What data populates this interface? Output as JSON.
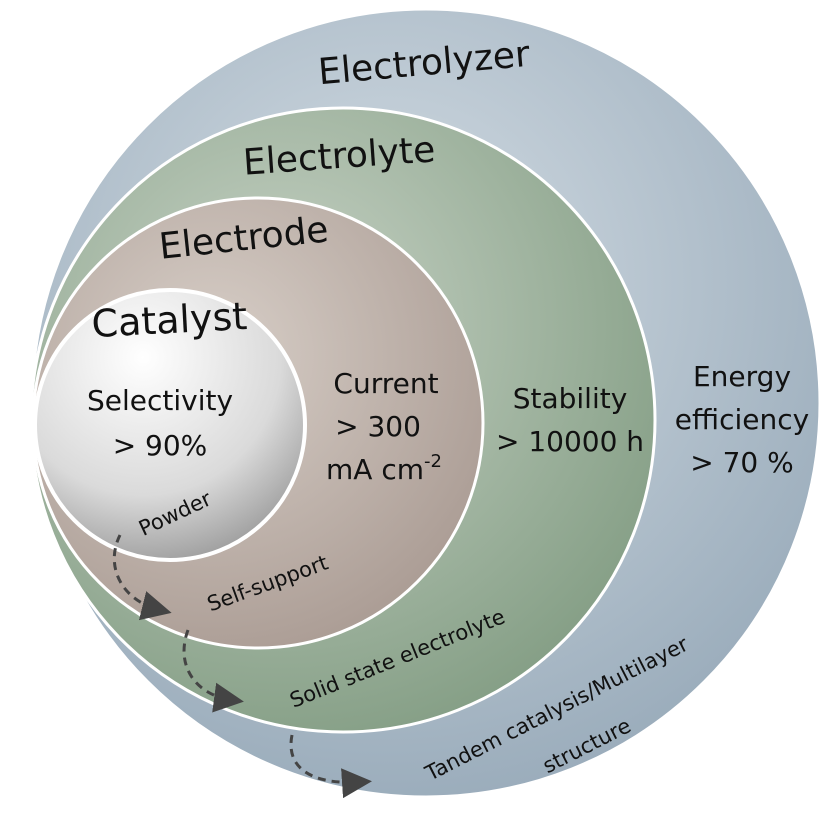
{
  "layers": [
    {
      "name": "Electrolyzer",
      "metric": [
        "Energy",
        "efficiency",
        "> 70 %"
      ],
      "approach": [
        "Tandem catalysis/Multilayer",
        "structure"
      ]
    },
    {
      "name": "Electrolyte",
      "metric": [
        "Stability",
        "> 10000 h"
      ],
      "approach": [
        "Solid state electrolyte"
      ]
    },
    {
      "name": "Electrode",
      "metric": [
        "Current",
        "> 300",
        "mA cm",
        "-2"
      ],
      "approach": [
        "Self-support"
      ]
    },
    {
      "name": "Catalyst",
      "metric": [
        "Selectivity",
        "> 90%"
      ],
      "approach": [
        "Powder"
      ]
    }
  ]
}
